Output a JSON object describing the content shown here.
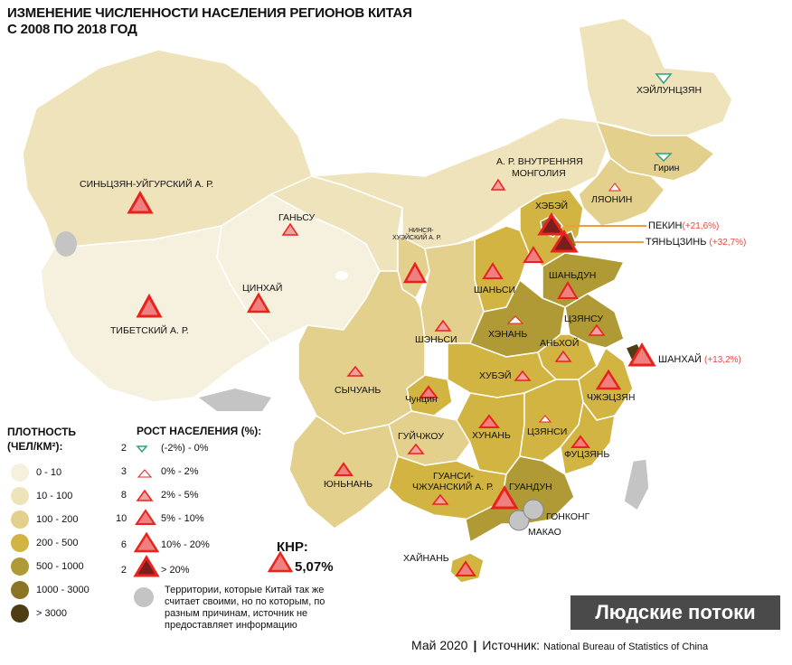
{
  "title_line1": "ИЗМЕНЕНИЕ ЧИСЛЕННОСТИ НАСЕЛЕНИЯ РЕГИОНОВ КИТАЯ",
  "title_line2": "С 2008 ПО 2018 ГОД",
  "density_legend": {
    "title_line1": "ПЛОТНОСТЬ",
    "title_line2": "(ЧЕЛ/КМ²):",
    "items": [
      {
        "label": "0 - 10",
        "color": "#f6f0de"
      },
      {
        "label": "10 - 100",
        "color": "#efe3bb"
      },
      {
        "label": "100 - 200",
        "color": "#e3d08c"
      },
      {
        "label": "200 - 500",
        "color": "#d2b442"
      },
      {
        "label": "500 - 1000",
        "color": "#b09a35"
      },
      {
        "label": "1000 - 3000",
        "color": "#8a7526"
      },
      {
        "label": "> 3000",
        "color": "#4e3d12"
      }
    ]
  },
  "growth_legend": {
    "title": "РОСТ НАСЕЛЕНИЯ (%):",
    "items": [
      {
        "count": "2",
        "label": "(-2%) - 0%",
        "style": "down"
      },
      {
        "count": "3",
        "label": "0% - 2%",
        "style": "tiny"
      },
      {
        "count": "8",
        "label": "2% - 5%",
        "style": "small"
      },
      {
        "count": "10",
        "label": "5% - 10%",
        "style": "medium"
      },
      {
        "count": "6",
        "label": "10% - 20%",
        "style": "large"
      },
      {
        "count": "2",
        "label": "> 20%",
        "style": "xlarge"
      }
    ],
    "territory_note": "Территории, которые Китай так же считает своими, но по которым, по разным причинам, источник не предоставляет информацию"
  },
  "knr": {
    "label": "КНР:",
    "value": "5,07%"
  },
  "regions": {
    "xinjiang": "СИНЬЦЗЯН-УЙГУРСКИЙ А. Р.",
    "tibet": "ТИБЕТСКИЙ А. Р.",
    "qinghai": "ЦИНХАЙ",
    "gansu": "ГАНЬСУ",
    "ningxia_1": "НИНСЯ-",
    "ningxia_2": "ХУЭЙСКИЙ А. Р.",
    "inner_mongolia_1": "А. Р. ВНУТРЕННЯЯ",
    "inner_mongolia_2": "МОНГОЛИЯ",
    "heilongjiang": "ХЭЙЛУНЦЗЯН",
    "jilin": "Гирин",
    "liaoning": "ЛЯОНИН",
    "hebei": "ХЭБЭЙ",
    "beijing": "ПЕКИН",
    "beijing_pct": "(+21,6%)",
    "tianjin": "ТЯНЬЦЗИНЬ",
    "tianjin_pct": "(+32,7%)",
    "shanxi": "ШАНЬСИ",
    "shandong": "ШАНЬДУН",
    "shaanxi": "ШЭНЬСИ",
    "henan": "ХЭНАНЬ",
    "jiangsu": "ЦЗЯНСУ",
    "anhui": "АНЬХОЙ",
    "shanghai": "ШАНХАЙ",
    "shanghai_pct": "(+13,2%)",
    "sichuan": "СЫЧУАНЬ",
    "chongqing": "Чунцин",
    "hubei": "ХУБЭЙ",
    "zhejiang": "ЧЖЭЦЗЯН",
    "guizhou": "ГУЙЧЖОУ",
    "hunan": "ХУНАНЬ",
    "jiangxi": "ЦЗЯНСИ",
    "fujian": "ФУЦЗЯНЬ",
    "yunnan": "ЮНЬНАНЬ",
    "guangxi_1": "ГУАНСИ-",
    "guangxi_2": "ЧЖУАНСКИЙ А. Р.",
    "guangdong": "ГУАНДУН",
    "hong_kong": "ГОНКОНГ",
    "macau": "МАКАО",
    "hainan": "ХАЙНАНЬ"
  },
  "brand": "Людские потоки",
  "footer": {
    "date": "Май 2020",
    "source_label": "Источник:",
    "source_value": "National Bureau of Statistics of China"
  },
  "colors": {
    "triangle_red": "#e8231c",
    "triangle_fill": "#f08080",
    "outline": "#ffffff",
    "disputed": "#c4c4c4",
    "beijing_line": "#f39a3a"
  }
}
